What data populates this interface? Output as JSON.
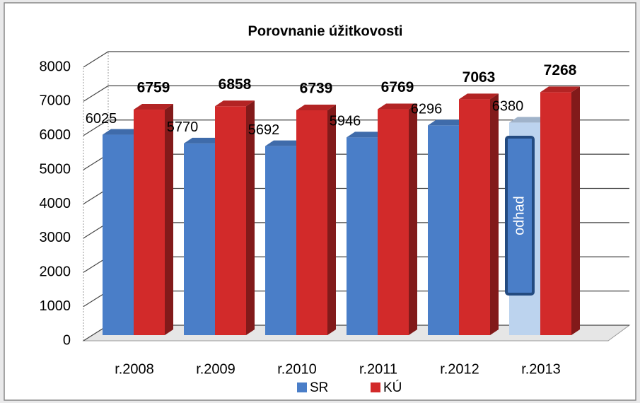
{
  "chart_data": {
    "type": "bar3d",
    "title": "Porovnanie úžitkovosti",
    "categories": [
      "r.2008",
      "r.2009",
      "r.2010",
      "r.2011",
      "r.2012",
      "r.2013"
    ],
    "series": [
      {
        "name": "SR",
        "color": "#4a7ec8",
        "values": [
          6025,
          5770,
          5692,
          5946,
          6296,
          6380
        ],
        "label_bold": false
      },
      {
        "name": "KÚ",
        "color": "#d22a2a",
        "values": [
          6759,
          6858,
          6739,
          6769,
          7063,
          7268
        ],
        "label_bold": true
      }
    ],
    "annotation": {
      "text": "odhad",
      "series_index": 0,
      "category_index": 5,
      "color": "#bcd3ee"
    },
    "ylim": [
      0,
      8000
    ],
    "yticks": [
      0,
      1000,
      2000,
      3000,
      4000,
      5000,
      6000,
      7000,
      8000
    ],
    "grid": true,
    "legend": "bottom"
  }
}
